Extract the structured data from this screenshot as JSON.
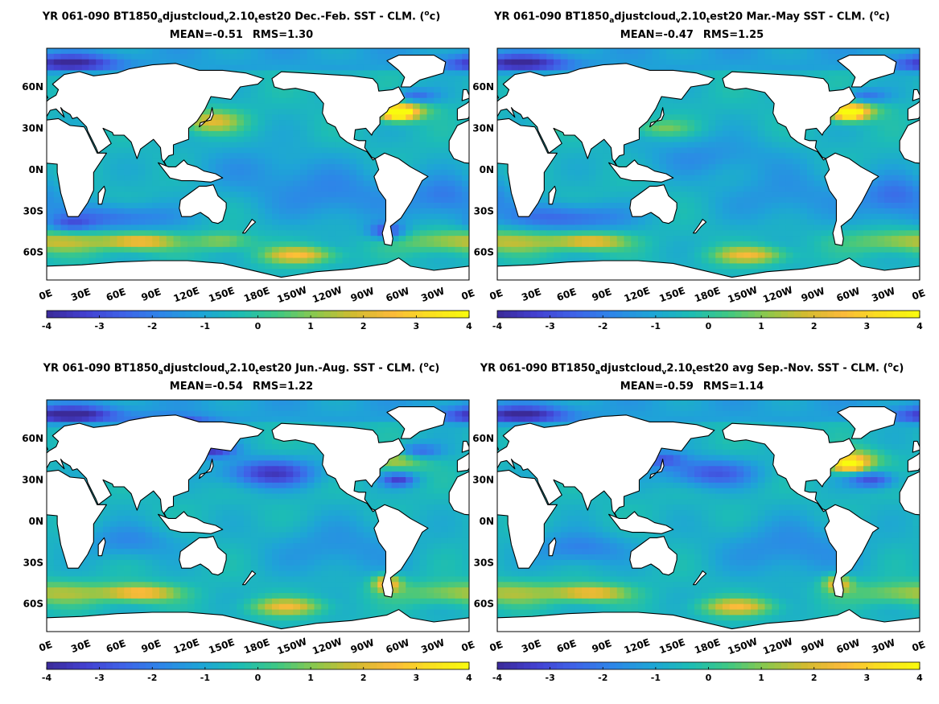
{
  "colorscale": {
    "min": -4,
    "max": 4,
    "stops": [
      "#3b2a98",
      "#4340d0",
      "#3f63e8",
      "#2d86e8",
      "#1ea4d7",
      "#1cbcb6",
      "#3ec884",
      "#8cc84c",
      "#d2bb30",
      "#fbba3a",
      "#fae01f",
      "#f9fb0e"
    ],
    "tick_labels": [
      "-4",
      "-3",
      "-2",
      "-1",
      "0",
      "1",
      "2",
      "3",
      "4"
    ]
  },
  "land_color": "#ffffff",
  "coast_color": "#000000",
  "chart_data": [
    {
      "type": "heatmap",
      "title_prefix": "YR 061-090 BT1850",
      "title_sub1": "a",
      "title_mid1": "djustcloud",
      "title_sub2": "v",
      "title_mid2": "2.10",
      "title_sub3": "t",
      "title_mid3": "est20 Dec.-Feb. SST - CLM. (",
      "title_sup": "o",
      "title_end": "c)",
      "mean": "MEAN=-0.51",
      "rms": "RMS=1.30",
      "x_tick_labels": [
        "0E",
        "30E",
        "60E",
        "90E",
        "120E",
        "150E",
        "180E",
        "150W",
        "120W",
        "90W",
        "60W",
        "30W",
        "0E"
      ],
      "y_tick_labels": [
        "60N",
        "30N",
        "0N",
        "30S",
        "60S"
      ],
      "season": "DJF"
    },
    {
      "type": "heatmap",
      "title_prefix": "YR 061-090 BT1850",
      "title_sub1": "a",
      "title_mid1": "djustcloud",
      "title_sub2": "v",
      "title_mid2": "2.10",
      "title_sub3": "t",
      "title_mid3": "est20 Mar.-May SST - CLM. (",
      "title_sup": "o",
      "title_end": "c)",
      "mean": "MEAN=-0.47",
      "rms": "RMS=1.25",
      "x_tick_labels": [
        "0E",
        "30E",
        "60E",
        "90E",
        "120E",
        "150E",
        "180E",
        "150W",
        "120W",
        "90W",
        "60W",
        "30W",
        "0E"
      ],
      "y_tick_labels": [
        "60N",
        "30N",
        "0N",
        "30S",
        "60S"
      ],
      "season": "MAM"
    },
    {
      "type": "heatmap",
      "title_prefix": "YR 061-090 BT1850",
      "title_sub1": "a",
      "title_mid1": "djustcloud",
      "title_sub2": "v",
      "title_mid2": "2.10",
      "title_sub3": "t",
      "title_mid3": "est20 Jun.-Aug. SST - CLM. (",
      "title_sup": "o",
      "title_end": "c)",
      "mean": "MEAN=-0.54",
      "rms": "RMS=1.22",
      "x_tick_labels": [
        "0E",
        "30E",
        "60E",
        "90E",
        "120E",
        "150E",
        "180E",
        "150W",
        "120W",
        "90W",
        "60W",
        "30W",
        "0E"
      ],
      "y_tick_labels": [
        "60N",
        "30N",
        "0N",
        "30S",
        "60S"
      ],
      "season": "JJA"
    },
    {
      "type": "heatmap",
      "title_prefix": "YR 061-090 BT1850",
      "title_sub1": "a",
      "title_mid1": "djustcloud",
      "title_sub2": "v",
      "title_mid2": "2.10",
      "title_sub3": "t",
      "title_mid3": "est20 avg Sep.-Nov. SST - CLM. (",
      "title_sup": "o",
      "title_end": "c)",
      "mean": "MEAN=-0.59",
      "rms": "RMS=1.14",
      "x_tick_labels": [
        "0E",
        "30E",
        "60E",
        "90E",
        "120E",
        "150E",
        "180E",
        "150W",
        "120W",
        "90W",
        "60W",
        "30W",
        "0E"
      ],
      "y_tick_labels": [
        "60N",
        "30N",
        "0N",
        "30S",
        "60S"
      ],
      "season": "SON"
    }
  ]
}
